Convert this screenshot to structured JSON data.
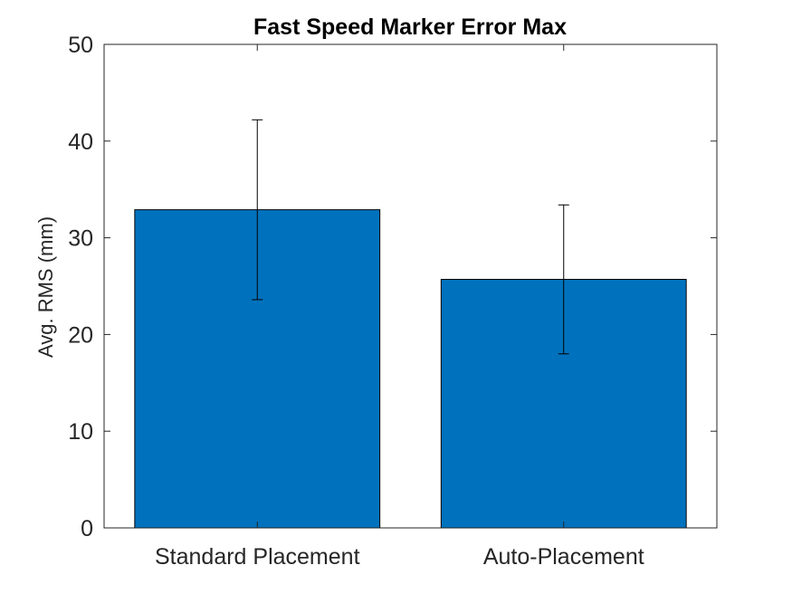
{
  "chart_data": {
    "type": "bar",
    "title": "Fast Speed Marker Error Max",
    "xlabel": "",
    "ylabel": "Avg. RMS (mm)",
    "categories": [
      "Standard Placement",
      "Auto-Placement"
    ],
    "values": [
      32.9,
      25.7
    ],
    "error_lower": [
      23.6,
      18.0
    ],
    "error_upper": [
      42.2,
      33.4
    ],
    "ylim": [
      0,
      50
    ],
    "yticks": [
      "0",
      "10",
      "20",
      "30",
      "40",
      "50"
    ],
    "grid": false,
    "bar_color": "#0072BD"
  }
}
